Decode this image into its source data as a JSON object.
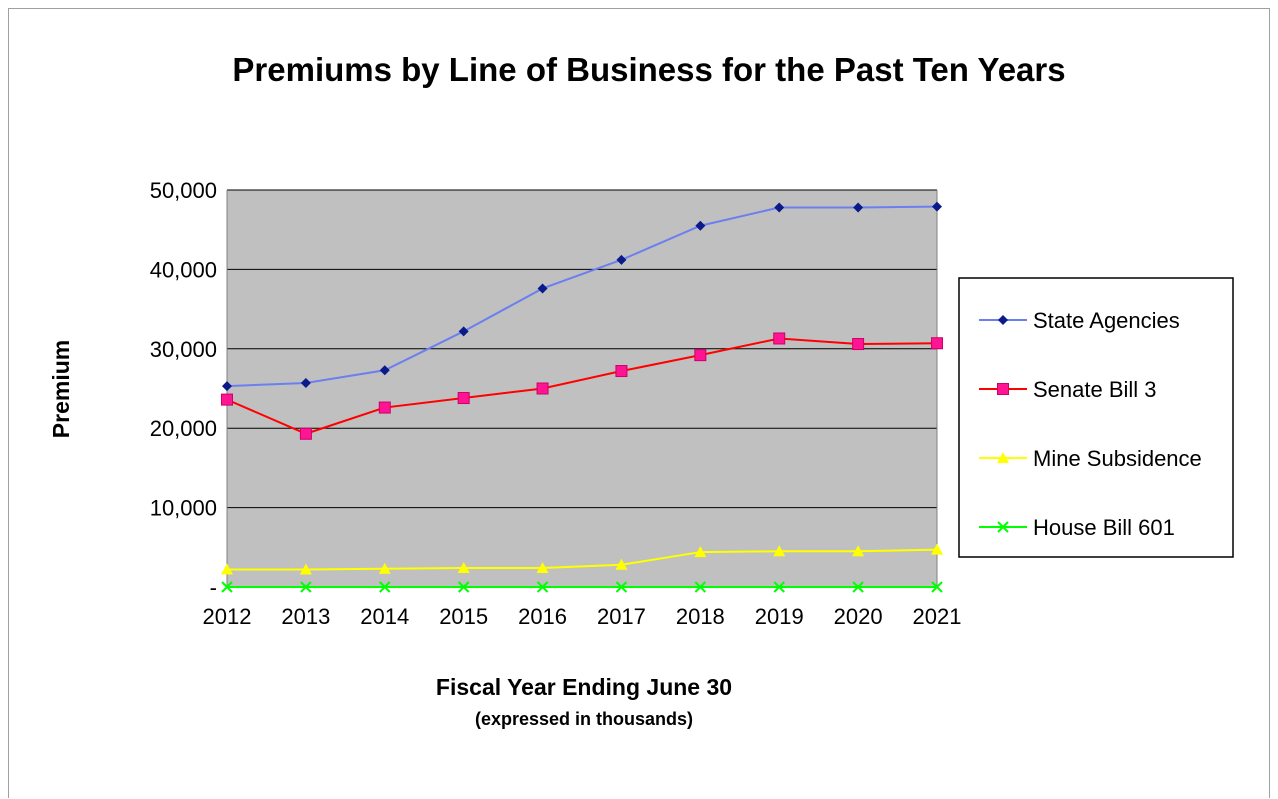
{
  "chart_data": {
    "type": "line",
    "title": "Premiums by Line of Business for the Past Ten Years",
    "xlabel": "Fiscal Year Ending June 30",
    "xlabel_sub": "(expressed in thousands)",
    "ylabel": "Premium",
    "categories": [
      "2012",
      "2013",
      "2014",
      "2015",
      "2016",
      "2017",
      "2018",
      "2019",
      "2020",
      "2021"
    ],
    "ylim": [
      0,
      50000
    ],
    "yticks": [
      {
        "value": 0,
        "label": "-"
      },
      {
        "value": 10000,
        "label": "10,000"
      },
      {
        "value": 20000,
        "label": "20,000"
      },
      {
        "value": 30000,
        "label": "30,000"
      },
      {
        "value": 40000,
        "label": "40,000"
      },
      {
        "value": 50000,
        "label": "50,000"
      }
    ],
    "grid": true,
    "plot_background": "#c0c0c0",
    "legend_position": "right",
    "series": [
      {
        "name": "State Agencies",
        "color": "#6b7ff0",
        "marker": "diamond",
        "marker_color": "#0a1a8a",
        "values": [
          25300,
          25700,
          27300,
          32200,
          37600,
          41200,
          45500,
          47800,
          47800,
          47900
        ]
      },
      {
        "name": "Senate Bill 3",
        "color": "#ff0000",
        "marker": "square",
        "marker_color": "#ff1493",
        "values": [
          23600,
          19300,
          22600,
          23800,
          25000,
          27200,
          29200,
          31300,
          30600,
          30700
        ]
      },
      {
        "name": "Mine Subsidence",
        "color": "#ffff00",
        "marker": "triangle",
        "marker_color": "#ffff00",
        "values": [
          2200,
          2200,
          2300,
          2400,
          2400,
          2800,
          4400,
          4500,
          4500,
          4700
        ]
      },
      {
        "name": "House Bill 601",
        "color": "#00ff00",
        "marker": "x",
        "marker_color": "#00ff00",
        "values": [
          0,
          0,
          0,
          0,
          0,
          0,
          0,
          0,
          0,
          0
        ]
      }
    ]
  }
}
